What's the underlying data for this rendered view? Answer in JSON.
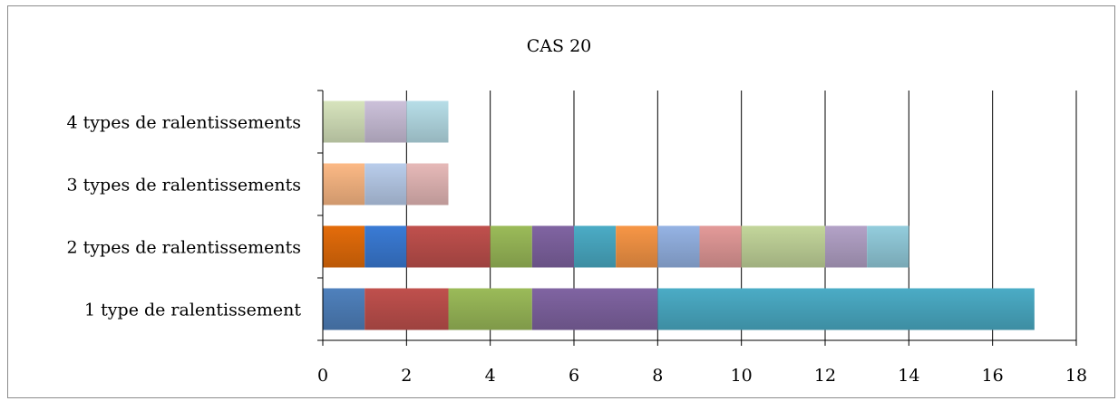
{
  "chart_data": {
    "type": "bar",
    "orientation": "horizontal",
    "stacked": true,
    "title": "CAS 20",
    "xlabel": "",
    "ylabel": "",
    "xlim": [
      0,
      18
    ],
    "xticks": [
      "0",
      "2",
      "4",
      "6",
      "8",
      "10",
      "12",
      "14",
      "16",
      "18"
    ],
    "grid": true,
    "categories": [
      "4 types de ralentissements",
      "3 types de ralentissements",
      "2 types de ralentissements",
      "1 type de ralentissement"
    ],
    "rows": [
      {
        "category": "4 types de ralentissements",
        "segments": [
          {
            "value": 1,
            "color": "#d7e4bd"
          },
          {
            "value": 1,
            "color": "#ccc1da"
          },
          {
            "value": 1,
            "color": "#b7dee8"
          }
        ]
      },
      {
        "category": "3 types de ralentissements",
        "segments": [
          {
            "value": 1,
            "color": "#fcb985"
          },
          {
            "value": 1,
            "color": "#b9cdeb"
          },
          {
            "value": 1,
            "color": "#e6b9b8"
          }
        ]
      },
      {
        "category": "2 types de ralentissements",
        "segments": [
          {
            "value": 1,
            "color": "#e46c0a"
          },
          {
            "value": 1,
            "color": "#3a7bd5"
          },
          {
            "value": 2,
            "color": "#c0504d"
          },
          {
            "value": 1,
            "color": "#9bbb59"
          },
          {
            "value": 1,
            "color": "#8064a2"
          },
          {
            "value": 1,
            "color": "#4bacc6"
          },
          {
            "value": 1,
            "color": "#f79646"
          },
          {
            "value": 1,
            "color": "#95b3e4"
          },
          {
            "value": 1,
            "color": "#e39a99"
          },
          {
            "value": 2,
            "color": "#c3d69b"
          },
          {
            "value": 1,
            "color": "#b3a2c7"
          },
          {
            "value": 1,
            "color": "#93cddd"
          }
        ]
      },
      {
        "category": "1 type de ralentissement",
        "segments": [
          {
            "value": 1,
            "color": "#4f81bd"
          },
          {
            "value": 2,
            "color": "#c0504d"
          },
          {
            "value": 2,
            "color": "#9bbb59"
          },
          {
            "value": 3,
            "color": "#8064a2"
          },
          {
            "value": 9,
            "color": "#4bacc6"
          }
        ]
      }
    ]
  }
}
